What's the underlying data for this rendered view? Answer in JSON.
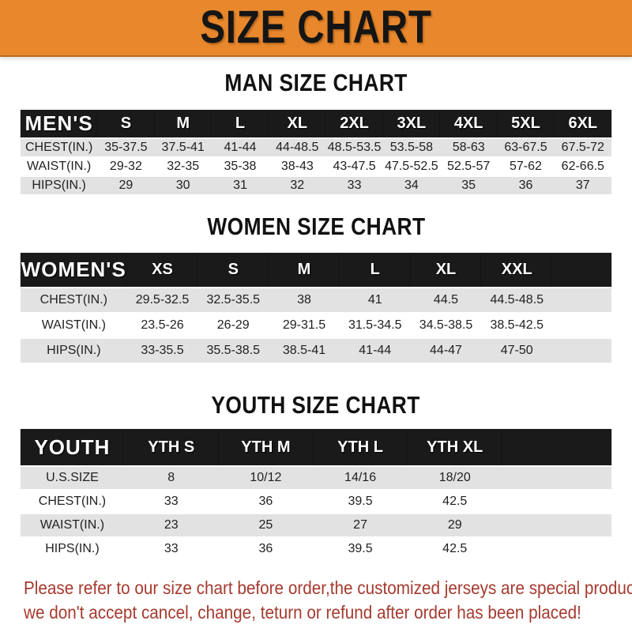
{
  "banner": {
    "title": "SIZE CHART",
    "bg_color": "#E8872C",
    "text_color": "#151515"
  },
  "colors": {
    "header_bar": "#1A1A1A",
    "stripe_gray": "#E2E2E2",
    "footer_red": "#A63A2E",
    "banner_orange": "#E8872C"
  },
  "sections": [
    {
      "key": "men",
      "title": "MAN SIZE CHART",
      "corner_label": "MEN'S",
      "columns": [
        "S",
        "M",
        "L",
        "XL",
        "2XL",
        "3XL",
        "4XL",
        "5XL",
        "6XL"
      ],
      "rows": [
        {
          "label": "CHEST(IN.)",
          "values": [
            "35-37.5",
            "37.5-41",
            "41-44",
            "44-48.5",
            "48.5-53.5",
            "53.5-58",
            "58-63",
            "63-67.5",
            "67.5-72"
          ]
        },
        {
          "label": "WAIST(IN.)",
          "values": [
            "29-32",
            "32-35",
            "35-38",
            "38-43",
            "43-47.5",
            "47.5-52.5",
            "52.5-57",
            "57-62",
            "62-66.5"
          ]
        },
        {
          "label": "HIPS(IN.)",
          "values": [
            "29",
            "30",
            "31",
            "32",
            "33",
            "34",
            "35",
            "36",
            "37"
          ]
        }
      ]
    },
    {
      "key": "women",
      "title": "WOMEN SIZE CHART",
      "corner_label": "WOMEN'S",
      "columns": [
        "XS",
        "S",
        "M",
        "L",
        "XL",
        "XXL"
      ],
      "rows": [
        {
          "label": "CHEST(IN.)",
          "values": [
            "29.5-32.5",
            "32.5-35.5",
            "38",
            "41",
            "44.5",
            "44.5-48.5"
          ]
        },
        {
          "label": "WAIST(IN.)",
          "values": [
            "23.5-26",
            "26-29",
            "29-31.5",
            "31.5-34.5",
            "34.5-38.5",
            "38.5-42.5"
          ]
        },
        {
          "label": "HIPS(IN.)",
          "values": [
            "33-35.5",
            "35.5-38.5",
            "38.5-41",
            "41-44",
            "44-47",
            "47-50"
          ]
        }
      ]
    },
    {
      "key": "youth",
      "title": "YOUTH SIZE CHART",
      "corner_label": "YOUTH",
      "columns": [
        "YTH S",
        "YTH M",
        "YTH L",
        "YTH XL"
      ],
      "rows": [
        {
          "label": "U.S.SIZE",
          "values": [
            "8",
            "10/12",
            "14/16",
            "18/20"
          ]
        },
        {
          "label": "CHEST(IN.)",
          "values": [
            "33",
            "36",
            "39.5",
            "42.5"
          ]
        },
        {
          "label": "WAIST(IN.)",
          "values": [
            "23",
            "25",
            "27",
            "29"
          ]
        },
        {
          "label": "HIPS(IN.)",
          "values": [
            "33",
            "36",
            "39.5",
            "42.5"
          ]
        }
      ]
    }
  ],
  "footer": {
    "line1": "Please refer to our size chart before order,the customized jerseys are special products,",
    "line2": "we don't accept cancel, change, teturn or refund after order has been placed!"
  }
}
